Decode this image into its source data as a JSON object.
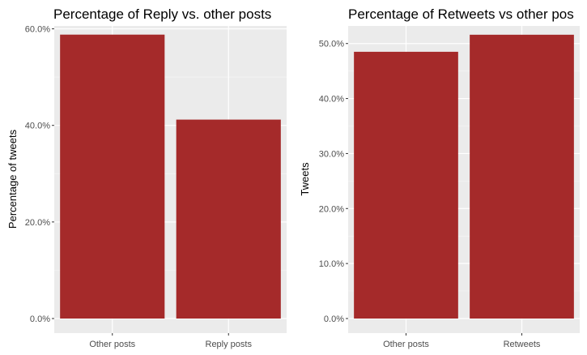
{
  "chart_data": [
    {
      "type": "bar",
      "title": "Percentage of Reply vs. other posts",
      "xlabel": "",
      "ylabel": "Percentage of tweets",
      "categories": [
        "Other posts",
        "Reply posts"
      ],
      "values": [
        58.8,
        41.2
      ],
      "ylim": [
        0,
        60.6
      ],
      "y_ticks": [
        0,
        20,
        40,
        60
      ],
      "y_tick_labels": [
        "0.0%",
        "20.0%",
        "40.0%",
        "60.0%"
      ],
      "bar_color": "#a52a2a",
      "panel_color": "#ebebeb",
      "grid": true
    },
    {
      "type": "bar",
      "title": "Percentage of Retweets vs other pos",
      "xlabel": "",
      "ylabel": "Tweets",
      "categories": [
        "Other posts",
        "Retweets"
      ],
      "values": [
        48.5,
        51.6
      ],
      "ylim": [
        0,
        53.2
      ],
      "y_ticks": [
        0,
        10,
        20,
        30,
        40,
        50
      ],
      "y_tick_labels": [
        "0.0%",
        "10.0%",
        "20.0%",
        "30.0%",
        "40.0%",
        "50.0%"
      ],
      "bar_color": "#a52a2a",
      "panel_color": "#ebebeb",
      "grid": true
    }
  ]
}
